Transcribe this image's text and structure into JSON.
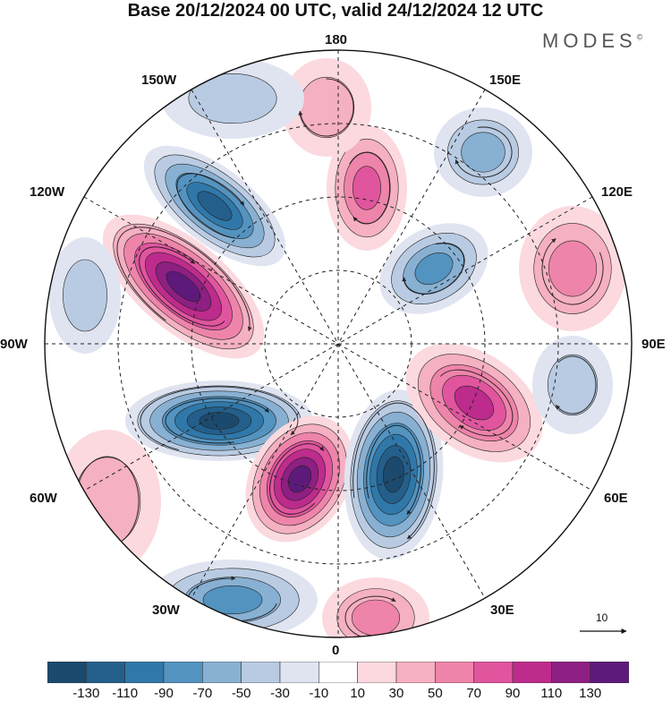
{
  "title": "Base 20/12/2024 00 UTC, valid 24/12/2024 12 UTC",
  "brand": "MODES",
  "brand_mark": "©",
  "longitude_labels": {
    "lon_180": "180",
    "lon_150w": "150W",
    "lon_150e": "150E",
    "lon_120w": "120W",
    "lon_120e": "120E",
    "lon_90w": "90W",
    "lon_90e": "90E",
    "lon_60w": "60W",
    "lon_60e": "60E",
    "lon_30w": "30W",
    "lon_30e": "30E",
    "lon_0": "0"
  },
  "vector_reference": "10",
  "colorbar": {
    "ticks": [
      "-130",
      "-110",
      "-90",
      "-70",
      "-50",
      "-30",
      "-10",
      "10",
      "30",
      "50",
      "70",
      "90",
      "110",
      "130"
    ],
    "colors": [
      "#1c4a6e",
      "#245f8c",
      "#2f78a9",
      "#5393c0",
      "#88b0d2",
      "#b9cbe2",
      "#e0e4f1",
      "#ffffff",
      "#fbd9df",
      "#f5b0c2",
      "#ee84aa",
      "#e0559e",
      "#bd2b8c",
      "#8e1f83",
      "#5d1a7a"
    ]
  },
  "colors": {
    "positive": "#e0559e",
    "negative": "#2f78a9"
  }
}
